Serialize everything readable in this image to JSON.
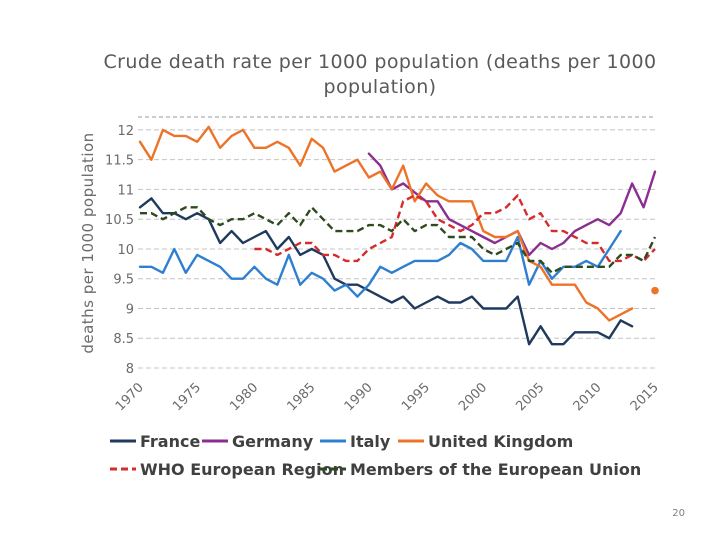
{
  "page": {
    "number": "20"
  },
  "chart_data": {
    "type": "line",
    "title": "Crude death rate per 1000 population (deaths per 1000 population)",
    "xlabel": "",
    "ylabel": "deaths per 1000 population",
    "xlim": [
      1970,
      2015
    ],
    "ylim": [
      8,
      12.2
    ],
    "x_ticks": [
      "1970",
      "1975",
      "1980",
      "1985",
      "1990",
      "1995",
      "2000",
      "2005",
      "2010",
      "2015"
    ],
    "y_ticks": [
      "8",
      "8.5",
      "9",
      "9.5",
      "10",
      "10.5",
      "11",
      "11.5",
      "12"
    ],
    "grid": "horizontal dashed",
    "legend_position": "bottom",
    "series": [
      {
        "name": "France",
        "color": "#1f3a5c",
        "dash": "solid",
        "x": [
          1970,
          1971,
          1972,
          1973,
          1974,
          1975,
          1976,
          1977,
          1978,
          1979,
          1980,
          1981,
          1982,
          1983,
          1984,
          1985,
          1986,
          1987,
          1988,
          1989,
          1990,
          1991,
          1992,
          1993,
          1994,
          1995,
          1996,
          1997,
          1998,
          1999,
          2000,
          2001,
          2002,
          2003,
          2004,
          2005,
          2006,
          2007,
          2008,
          2009,
          2010,
          2011,
          2012,
          2013
        ],
        "y": [
          10.7,
          10.85,
          10.6,
          10.6,
          10.5,
          10.6,
          10.5,
          10.1,
          10.3,
          10.1,
          10.2,
          10.3,
          10.0,
          10.2,
          9.9,
          10.0,
          9.9,
          9.5,
          9.4,
          9.4,
          9.3,
          9.2,
          9.1,
          9.2,
          9.0,
          9.1,
          9.2,
          9.1,
          9.1,
          9.2,
          9.0,
          9.0,
          9.0,
          9.2,
          8.4,
          8.7,
          8.4,
          8.4,
          8.6,
          8.6,
          8.6,
          8.5,
          8.8,
          8.7
        ]
      },
      {
        "name": "Germany",
        "color": "#8b2d91",
        "dash": "solid",
        "x": [
          1990,
          1991,
          1992,
          1993,
          1994,
          1995,
          1996,
          1997,
          1998,
          1999,
          2000,
          2001,
          2002,
          2003,
          2004,
          2005,
          2006,
          2007,
          2008,
          2009,
          2010,
          2011,
          2012,
          2013,
          2014,
          2015
        ],
        "y": [
          11.6,
          11.4,
          11.0,
          11.1,
          10.95,
          10.8,
          10.8,
          10.5,
          10.4,
          10.3,
          10.2,
          10.1,
          10.2,
          10.3,
          9.9,
          10.1,
          10.0,
          10.1,
          10.3,
          10.4,
          10.5,
          10.4,
          10.6,
          11.1,
          10.7,
          11.3
        ]
      },
      {
        "name": "Italy",
        "color": "#2f7fd0",
        "dash": "solid",
        "x": [
          1970,
          1971,
          1972,
          1973,
          1974,
          1975,
          1976,
          1977,
          1978,
          1979,
          1980,
          1981,
          1982,
          1983,
          1984,
          1985,
          1986,
          1987,
          1988,
          1989,
          1990,
          1991,
          1992,
          1993,
          1994,
          1995,
          1996,
          1997,
          1998,
          1999,
          2000,
          2001,
          2002,
          2003,
          2004,
          2005,
          2006,
          2007,
          2008,
          2009,
          2010,
          2011,
          2012
        ],
        "y": [
          9.7,
          9.7,
          9.6,
          10.0,
          9.6,
          9.9,
          9.8,
          9.7,
          9.5,
          9.5,
          9.7,
          9.5,
          9.4,
          9.9,
          9.4,
          9.6,
          9.5,
          9.3,
          9.4,
          9.2,
          9.4,
          9.7,
          9.6,
          9.7,
          9.8,
          9.8,
          9.8,
          9.9,
          10.1,
          10.0,
          9.8,
          9.8,
          9.8,
          10.2,
          9.4,
          9.8,
          9.5,
          9.7,
          9.7,
          9.8,
          9.7,
          10.0,
          10.3
        ]
      },
      {
        "name": "United Kingdom",
        "color": "#ed7328",
        "dash": "solid",
        "x": [
          1970,
          1971,
          1972,
          1973,
          1974,
          1975,
          1976,
          1977,
          1978,
          1979,
          1980,
          1981,
          1982,
          1983,
          1984,
          1985,
          1986,
          1987,
          1988,
          1989,
          1990,
          1991,
          1992,
          1993,
          1994,
          1995,
          1996,
          1997,
          1998,
          1999,
          2000,
          2001,
          2002,
          2003,
          2004,
          2005,
          2006,
          2007,
          2008,
          2009,
          2010,
          2011,
          2012,
          2013
        ],
        "y": [
          11.8,
          11.5,
          12.0,
          11.9,
          11.9,
          11.8,
          12.05,
          11.7,
          11.9,
          12.0,
          11.7,
          11.7,
          11.8,
          11.7,
          11.4,
          11.85,
          11.7,
          11.3,
          11.4,
          11.5,
          11.2,
          11.3,
          11.0,
          11.4,
          10.8,
          11.1,
          10.9,
          10.8,
          10.8,
          10.8,
          10.3,
          10.2,
          10.2,
          10.3,
          9.8,
          9.7,
          9.4,
          9.4,
          9.4,
          9.1,
          9.0,
          8.8,
          8.9,
          9.0
        ]
      },
      {
        "name": "WHO European Region",
        "color": "#d52b2b",
        "dash": "dashed",
        "x": [
          1980,
          1981,
          1982,
          1983,
          1984,
          1985,
          1986,
          1987,
          1988,
          1989,
          1990,
          1991,
          1992,
          1993,
          1994,
          1995,
          1996,
          1997,
          1998,
          1999,
          2000,
          2001,
          2002,
          2003,
          2004,
          2005,
          2006,
          2007,
          2008,
          2009,
          2010,
          2011,
          2012,
          2013,
          2014,
          2015
        ],
        "y": [
          10.0,
          10.0,
          9.9,
          10.0,
          10.1,
          10.1,
          9.9,
          9.9,
          9.8,
          9.8,
          10.0,
          10.1,
          10.2,
          10.8,
          10.9,
          10.8,
          10.5,
          10.4,
          10.3,
          10.4,
          10.6,
          10.6,
          10.7,
          10.9,
          10.5,
          10.6,
          10.3,
          10.3,
          10.2,
          10.1,
          10.1,
          9.8,
          9.8,
          9.9,
          9.8,
          10.0
        ]
      },
      {
        "name": "Members of the European Union",
        "color": "#2e4a1f",
        "dash": "dashed",
        "x": [
          1970,
          1971,
          1972,
          1973,
          1974,
          1975,
          1976,
          1977,
          1978,
          1979,
          1980,
          1981,
          1982,
          1983,
          1984,
          1985,
          1986,
          1987,
          1988,
          1989,
          1990,
          1991,
          1992,
          1993,
          1994,
          1995,
          1996,
          1997,
          1998,
          1999,
          2000,
          2001,
          2002,
          2003,
          2004,
          2005,
          2006,
          2007,
          2008,
          2009,
          2010,
          2011,
          2012,
          2013,
          2014,
          2015
        ],
        "y": [
          10.6,
          10.6,
          10.5,
          10.6,
          10.7,
          10.7,
          10.5,
          10.4,
          10.5,
          10.5,
          10.6,
          10.5,
          10.4,
          10.6,
          10.4,
          10.7,
          10.5,
          10.3,
          10.3,
          10.3,
          10.4,
          10.4,
          10.3,
          10.5,
          10.3,
          10.4,
          10.4,
          10.2,
          10.2,
          10.2,
          10.0,
          9.9,
          10.0,
          10.1,
          9.8,
          9.8,
          9.6,
          9.7,
          9.7,
          9.7,
          9.7,
          9.7,
          9.9,
          9.9,
          9.8,
          10.2
        ]
      }
    ],
    "annotations": [
      {
        "label": "United Kingdom marker",
        "x": 2015,
        "y": 9.3,
        "color": "#ed7328"
      }
    ]
  }
}
